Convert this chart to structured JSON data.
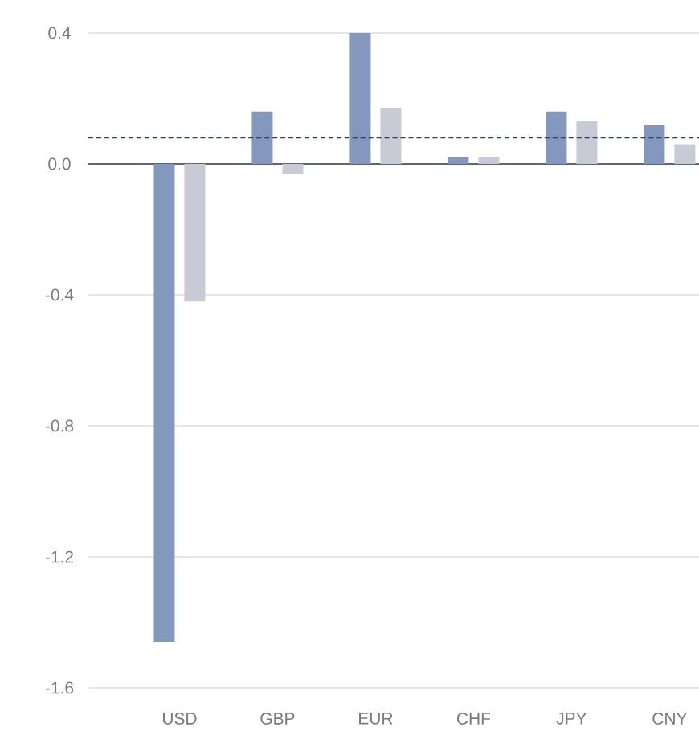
{
  "chart_data": {
    "type": "bar",
    "categories": [
      "USD",
      "GBP",
      "EUR",
      "CHF",
      "JPY",
      "CNY"
    ],
    "series": [
      {
        "color": "#8497bd",
        "values": [
          -1.46,
          0.16,
          0.4,
          0.02,
          0.16,
          0.12
        ]
      },
      {
        "color": "#c8cbd5",
        "values": [
          -0.42,
          -0.03,
          0.17,
          0.02,
          0.13,
          0.06
        ]
      }
    ],
    "ylim": [
      -1.6,
      0.4
    ],
    "yticks": [
      {
        "value": -1.6,
        "label": "-1.6"
      },
      {
        "value": -1.2,
        "label": "-1.2"
      },
      {
        "value": -0.8,
        "label": "-0.8"
      },
      {
        "value": -0.4,
        "label": "-0.4"
      },
      {
        "value": 0,
        "label": "0.0"
      },
      {
        "value": 0.4,
        "label": "0.4"
      }
    ],
    "grid": "y",
    "ref_lines": [
      {
        "axis": "y",
        "value": 0.08,
        "color": "#2d3a5a",
        "line_style": "dashed"
      }
    ]
  }
}
